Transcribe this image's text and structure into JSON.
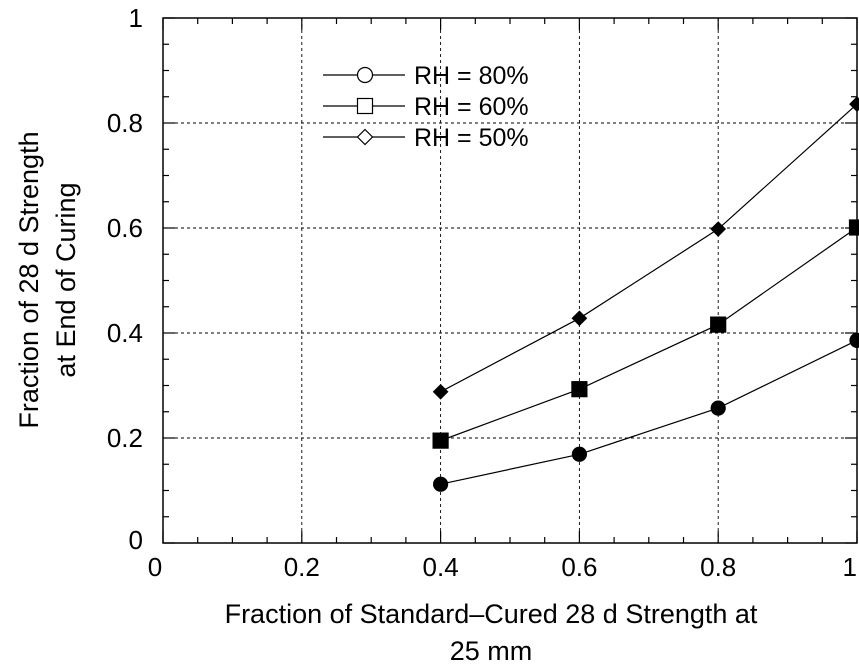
{
  "chart_data": {
    "type": "line",
    "title": "",
    "xlabel": [
      "Fraction of Standard–Cured 28 d Strength at",
      "25 mm"
    ],
    "ylabel": [
      "Fraction of 28 d Strength",
      "at End of Curing"
    ],
    "xlim": [
      0,
      1
    ],
    "ylim": [
      0,
      1
    ],
    "x_ticks": [
      0,
      0.2,
      0.4,
      0.6,
      0.8,
      1
    ],
    "x_tick_labels": [
      "0",
      "0.2",
      "0.4",
      "0.6",
      "0.8",
      "1"
    ],
    "y_ticks": [
      0,
      0.2,
      0.4,
      0.6,
      0.8,
      1
    ],
    "y_tick_labels": [
      "0",
      "0.2",
      "0.4",
      "0.6",
      "0.8",
      "1"
    ],
    "grid": true,
    "legend_position": "top-left",
    "series": [
      {
        "name": "RH = 80%",
        "marker": "circle",
        "x": [
          0.4,
          0.6,
          0.8,
          1.0
        ],
        "values": [
          0.112,
          0.169,
          0.257,
          0.386
        ]
      },
      {
        "name": "RH = 60%",
        "marker": "square",
        "x": [
          0.4,
          0.6,
          0.8,
          1.0
        ],
        "values": [
          0.195,
          0.293,
          0.416,
          0.601
        ]
      },
      {
        "name": "RH = 50%",
        "marker": "diamond",
        "x": [
          0.4,
          0.6,
          0.8,
          1.0
        ],
        "values": [
          0.288,
          0.428,
          0.598,
          0.836
        ]
      }
    ],
    "colors": {
      "line": "#000000",
      "marker_fill": "#000000",
      "background": "#ffffff"
    }
  }
}
